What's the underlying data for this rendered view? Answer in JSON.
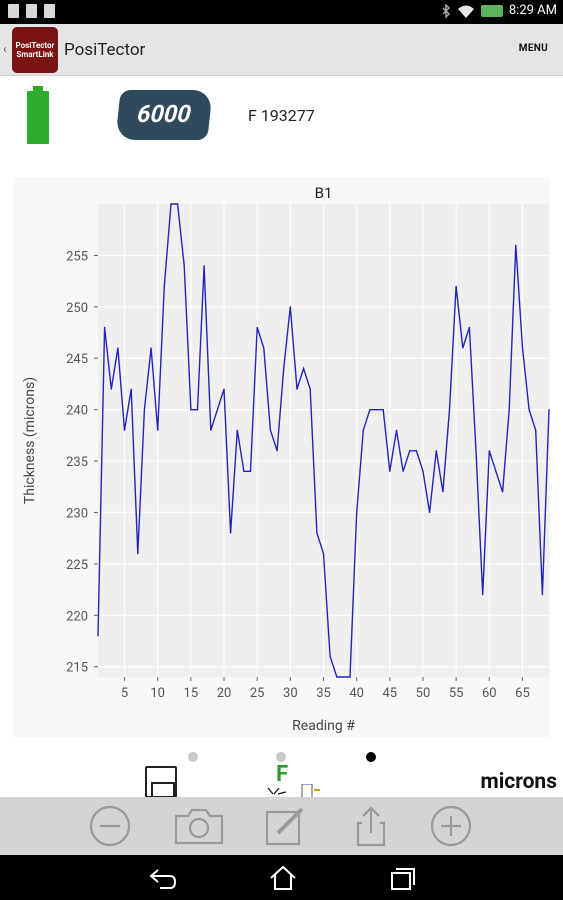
{
  "status_bar": {
    "time": "8:29 AM"
  },
  "action_bar": {
    "title": "PosiTector",
    "menu_label": "MENU",
    "logo_text": "PosiTector SmartLink"
  },
  "gauge": {
    "model": "6000",
    "serial": "F 193277",
    "battery_level": 1.0
  },
  "controls": {
    "units_label": "microns",
    "mode_label": "F",
    "page_count": 3,
    "active_page": 3
  },
  "colors": {
    "series_line": "#2424b8",
    "plot_bg": "#efefef",
    "battery_green": "#2dab2d",
    "badge_bg": "#2f4a5c"
  },
  "chart_data": {
    "type": "line",
    "title": "B1",
    "xlabel": "Reading #",
    "ylabel": "Thickness (microns)",
    "grid": true,
    "xlim": [
      1,
      69
    ],
    "ylim": [
      214,
      260
    ],
    "xticks": [
      5,
      10,
      15,
      20,
      25,
      30,
      35,
      40,
      45,
      50,
      55,
      60,
      65
    ],
    "yticks": [
      215,
      220,
      225,
      230,
      235,
      240,
      245,
      250,
      255
    ],
    "x": [
      1,
      2,
      3,
      4,
      5,
      6,
      7,
      8,
      9,
      10,
      11,
      12,
      13,
      14,
      15,
      16,
      17,
      18,
      19,
      20,
      21,
      22,
      23,
      24,
      25,
      26,
      27,
      28,
      29,
      30,
      31,
      32,
      33,
      34,
      35,
      36,
      37,
      38,
      39,
      40,
      41,
      42,
      43,
      44,
      45,
      46,
      47,
      48,
      49,
      50,
      51,
      52,
      53,
      54,
      55,
      56,
      57,
      58,
      59,
      60,
      61,
      62,
      63,
      64,
      65,
      66,
      67,
      68,
      69
    ],
    "values": [
      218,
      248,
      242,
      246,
      238,
      242,
      226,
      240,
      246,
      238,
      252,
      260,
      260,
      254,
      240,
      240,
      254,
      238,
      240,
      242,
      228,
      238,
      234,
      234,
      248,
      246,
      238,
      236,
      244,
      250,
      242,
      244,
      242,
      228,
      226,
      216,
      214,
      214,
      214,
      230,
      238,
      240,
      240,
      240,
      234,
      238,
      234,
      236,
      236,
      234,
      230,
      236,
      232,
      240,
      252,
      246,
      248,
      236,
      222,
      236,
      234,
      232,
      240,
      256,
      246,
      240,
      238,
      222,
      240
    ]
  }
}
